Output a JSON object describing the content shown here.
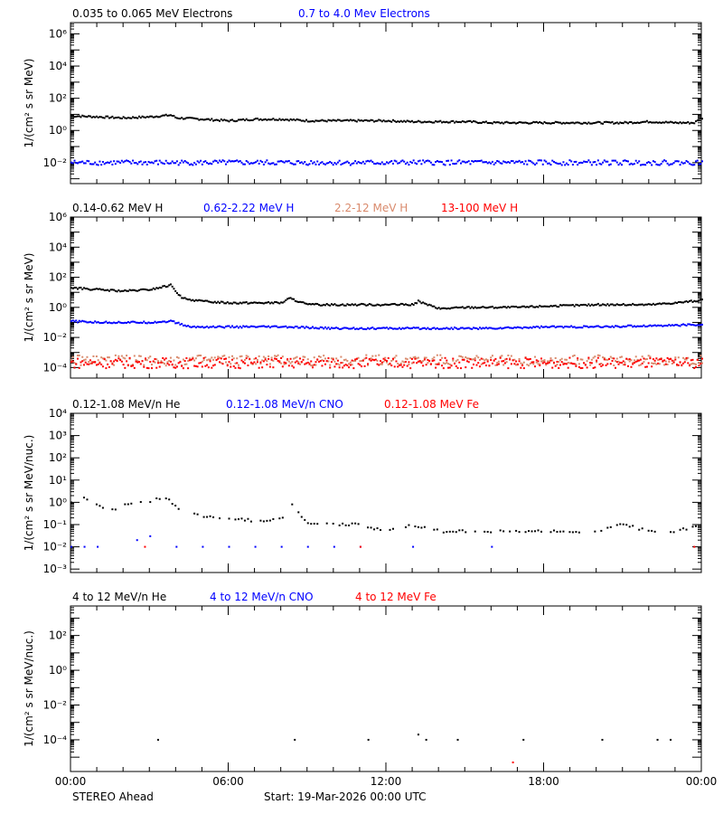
{
  "colors": {
    "black": "#000000",
    "blue": "#0000ff",
    "red": "#ff0000",
    "salmon": "#d98a6c"
  },
  "footer": {
    "spacecraft": "STEREO Ahead",
    "start": "Start: 19-Mar-2026 00:00 UTC"
  },
  "x_ticks": [
    "00:00",
    "06:00",
    "12:00",
    "18:00",
    "00:00"
  ],
  "chart_data": [
    {
      "type": "scatter",
      "yscale": "log",
      "ylim": [
        0.0005,
        5000000
      ],
      "ylabel": "1/(cm² s sr MeV)",
      "ytick_exponents": [
        -2,
        0,
        2,
        4,
        6
      ],
      "x_range_hours": [
        0,
        24
      ],
      "series": [
        {
          "name": "0.035 to 0.065 MeV Electrons",
          "color": "#000000",
          "x": [
            0,
            1,
            2,
            3,
            3.8,
            4,
            5,
            6,
            7,
            8,
            9,
            10,
            11,
            12,
            13,
            14,
            15,
            16,
            17,
            18,
            19,
            20,
            21,
            22,
            23,
            23.7,
            24
          ],
          "y": [
            8,
            7,
            6,
            7,
            9,
            6,
            5,
            4,
            5,
            5,
            4,
            4,
            4,
            4,
            3.5,
            3.5,
            3.5,
            3,
            3,
            3,
            3,
            3,
            3,
            3.5,
            3,
            3,
            6
          ]
        },
        {
          "name": "0.7 to 4.0 Mev Electrons",
          "color": "#0000ff",
          "x": [
            0,
            2,
            4,
            6,
            8,
            10,
            12,
            14,
            16,
            18,
            20,
            22,
            24
          ],
          "y": [
            0.01,
            0.01,
            0.01,
            0.01,
            0.01,
            0.01,
            0.01,
            0.01,
            0.01,
            0.01,
            0.01,
            0.01,
            0.01
          ]
        }
      ]
    },
    {
      "type": "scatter",
      "yscale": "log",
      "ylim": [
        2e-05,
        1000000
      ],
      "ylabel": "1/(cm² s sr MeV)",
      "ytick_exponents": [
        -4,
        -2,
        0,
        2,
        4,
        6
      ],
      "x_range_hours": [
        0,
        24
      ],
      "series": [
        {
          "name": "0.14-0.62 MeV H",
          "color": "#000000",
          "x": [
            0,
            1,
            2,
            3,
            3.8,
            4.2,
            5,
            6,
            7,
            8,
            8.3,
            9,
            10,
            11,
            12,
            13,
            13.2,
            14,
            15,
            16,
            17,
            18,
            19,
            20,
            21,
            22,
            23,
            24
          ],
          "y": [
            20,
            15,
            12,
            15,
            30,
            4,
            2.5,
            2,
            2,
            2,
            4,
            1.5,
            1.5,
            1.5,
            1.5,
            1.5,
            2.5,
            0.8,
            1,
            1,
            1,
            1.2,
            1.3,
            1.5,
            1.5,
            1.5,
            2,
            3
          ]
        },
        {
          "name": "0.62-2.22 MeV H",
          "color": "#0000ff",
          "x": [
            0,
            1,
            2,
            3,
            3.8,
            4.5,
            6,
            8,
            10,
            12,
            14,
            16,
            18,
            20,
            22,
            24
          ],
          "y": [
            0.12,
            0.1,
            0.1,
            0.1,
            0.12,
            0.05,
            0.05,
            0.05,
            0.04,
            0.04,
            0.04,
            0.04,
            0.05,
            0.05,
            0.06,
            0.07
          ]
        },
        {
          "name": "2.2-12 MeV H",
          "color": "#d98a6c",
          "x": [
            0,
            2,
            4,
            6,
            8,
            10,
            12,
            14,
            16,
            18,
            20,
            22,
            24
          ],
          "y": [
            0.0003,
            0.0003,
            0.0003,
            0.0003,
            0.0003,
            0.0003,
            0.0003,
            0.0003,
            0.0003,
            0.0003,
            0.0003,
            0.0003,
            0.0003
          ]
        },
        {
          "name": "13-100 MeV H",
          "color": "#ff0000",
          "x": [
            0,
            2,
            4,
            6,
            8,
            10,
            12,
            14,
            16,
            18,
            20,
            22,
            24
          ],
          "y": [
            0.0002,
            0.0002,
            0.0002,
            0.0002,
            0.0002,
            0.0002,
            0.0002,
            0.0002,
            0.0002,
            0.0002,
            0.0002,
            0.0002,
            0.0002
          ]
        }
      ]
    },
    {
      "type": "scatter",
      "yscale": "log",
      "ylim": [
        0.0007,
        10000
      ],
      "ylabel": "1/(cm² s sr MeV/nuc.)",
      "ytick_exponents": [
        -3,
        -2,
        -1,
        0,
        1,
        2,
        3,
        4
      ],
      "x_range_hours": [
        0,
        24
      ],
      "series": [
        {
          "name": "0.12-1.08 MeV/n He",
          "color": "#000000",
          "x": [
            0,
            0.5,
            1,
            1.5,
            2,
            2.5,
            3,
            3.5,
            4,
            5,
            6,
            7,
            8,
            8.3,
            9,
            10,
            11,
            12,
            13,
            14,
            15,
            16,
            17,
            18,
            19,
            20,
            21,
            22,
            23,
            24
          ],
          "y": [
            1,
            1.8,
            0.8,
            0.4,
            0.8,
            1.1,
            0.9,
            2,
            0.6,
            0.25,
            0.2,
            0.15,
            0.18,
            1,
            0.12,
            0.1,
            0.1,
            0.05,
            0.1,
            0.05,
            0.05,
            0.05,
            0.05,
            0.05,
            0.05,
            0.05,
            0.1,
            0.05,
            0.05,
            0.1
          ]
        },
        {
          "name": "0.12-1.08 MeV/n CNO",
          "color": "#0000ff",
          "x": [
            0,
            0.5,
            1,
            2.5,
            3,
            4,
            5,
            6,
            7,
            8,
            9,
            10,
            11,
            13,
            16
          ],
          "y": [
            0.01,
            0.01,
            0.01,
            0.02,
            0.03,
            0.01,
            0.01,
            0.01,
            0.01,
            0.01,
            0.01,
            0.01,
            0.01,
            0.01,
            0.01
          ]
        },
        {
          "name": "0.12-1.08 MeV Fe",
          "color": "#ff0000",
          "x": [
            2.8,
            11,
            23.7
          ],
          "y": [
            0.01,
            0.01,
            0.01
          ]
        }
      ]
    },
    {
      "type": "scatter",
      "yscale": "log",
      "ylim": [
        1.5e-06,
        5000
      ],
      "ylabel": "1/(cm² s sr MeV/nuc.)",
      "ytick_exponents": [
        -4,
        -2,
        0,
        2
      ],
      "x_range_hours": [
        0,
        24
      ],
      "series": [
        {
          "name": "4 to 12 MeV/n He",
          "color": "#000000",
          "x": [
            3.3,
            8.5,
            11.3,
            13.2,
            13.5,
            14.7,
            17.2,
            20.2,
            22.3,
            22.8
          ],
          "y": [
            0.0001,
            0.0001,
            0.0001,
            0.0002,
            0.0001,
            0.0001,
            0.0001,
            0.0001,
            0.0001,
            0.0001
          ]
        },
        {
          "name": "4 to 12 MeV/n CNO",
          "color": "#0000ff",
          "x": [],
          "y": []
        },
        {
          "name": "4 to 12 MeV Fe",
          "color": "#ff0000",
          "x": [
            16.8
          ],
          "y": [
            5e-06
          ]
        }
      ]
    }
  ]
}
